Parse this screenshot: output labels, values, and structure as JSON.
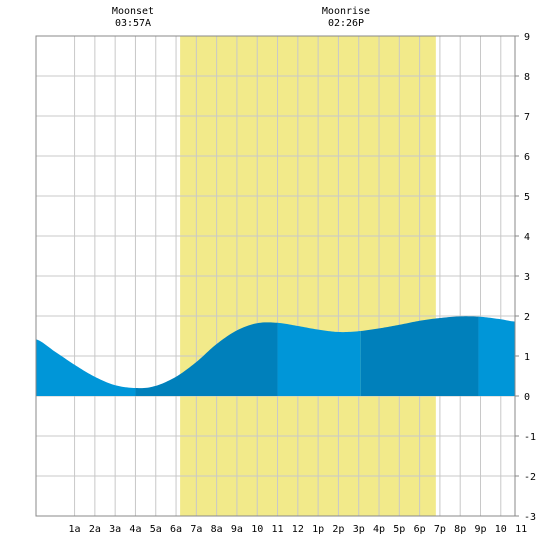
{
  "moon": {
    "moonset": {
      "label": "Moonset",
      "time": "03:57A",
      "hour": 3.95
    },
    "moonrise": {
      "label": "Moonrise",
      "time": "02:26P",
      "hour": 14.43
    }
  },
  "chart_data": {
    "type": "area",
    "title": "",
    "xlabel": "",
    "ylabel": "",
    "xlim": [
      -0.9,
      22.7
    ],
    "ylim": [
      -3,
      9
    ],
    "y_ticks": [
      "-3",
      "-2",
      "-1",
      "0",
      "1",
      "2",
      "3",
      "4",
      "5",
      "6",
      "7",
      "8",
      "9"
    ],
    "x_ticks": [
      {
        "hour": 1,
        "label": "1a"
      },
      {
        "hour": 2,
        "label": "2a"
      },
      {
        "hour": 3,
        "label": "3a"
      },
      {
        "hour": 4,
        "label": "4a"
      },
      {
        "hour": 5,
        "label": "5a"
      },
      {
        "hour": 6,
        "label": "6a"
      },
      {
        "hour": 7,
        "label": "7a"
      },
      {
        "hour": 8,
        "label": "8a"
      },
      {
        "hour": 9,
        "label": "9a"
      },
      {
        "hour": 10,
        "label": "10"
      },
      {
        "hour": 11,
        "label": "11"
      },
      {
        "hour": 12,
        "label": "12"
      },
      {
        "hour": 13,
        "label": "1p"
      },
      {
        "hour": 14,
        "label": "2p"
      },
      {
        "hour": 15,
        "label": "3p"
      },
      {
        "hour": 16,
        "label": "4p"
      },
      {
        "hour": 17,
        "label": "5p"
      },
      {
        "hour": 18,
        "label": "6p"
      },
      {
        "hour": 19,
        "label": "7p"
      },
      {
        "hour": 20,
        "label": "8p"
      },
      {
        "hour": 21,
        "label": "9p"
      },
      {
        "hour": 22,
        "label": "10"
      },
      {
        "hour": 23,
        "label": "11"
      }
    ],
    "daylight": {
      "start": 6.2,
      "end": 18.8
    },
    "tide": {
      "hours": [
        -0.9,
        0,
        1,
        2,
        3,
        4,
        4.9,
        6,
        7,
        8,
        9,
        10,
        11,
        12,
        13,
        14,
        15,
        16,
        17,
        18,
        19,
        20,
        21,
        22,
        22.7
      ],
      "heights": [
        1.42,
        1.12,
        0.78,
        0.48,
        0.27,
        0.2,
        0.24,
        0.48,
        0.85,
        1.3,
        1.64,
        1.82,
        1.83,
        1.75,
        1.66,
        1.6,
        1.62,
        1.69,
        1.78,
        1.88,
        1.95,
        1.99,
        1.98,
        1.92,
        1.86
      ]
    },
    "tide_bands": [
      {
        "start": -0.9,
        "end": 4.0,
        "shade": "light"
      },
      {
        "start": 4.0,
        "end": 11.0,
        "shade": "dark"
      },
      {
        "start": 11.0,
        "end": 15.1,
        "shade": "light"
      },
      {
        "start": 15.1,
        "end": 20.9,
        "shade": "dark"
      },
      {
        "start": 20.9,
        "end": 22.7,
        "shade": "light"
      }
    ],
    "grid": true,
    "colors": {
      "daylight": "#f2ea8a",
      "tide_light": "#0096d8",
      "tide_dark": "#0080bb",
      "grid": "#c8c8c8",
      "frame": "#888888",
      "background": "#ffffff"
    }
  }
}
